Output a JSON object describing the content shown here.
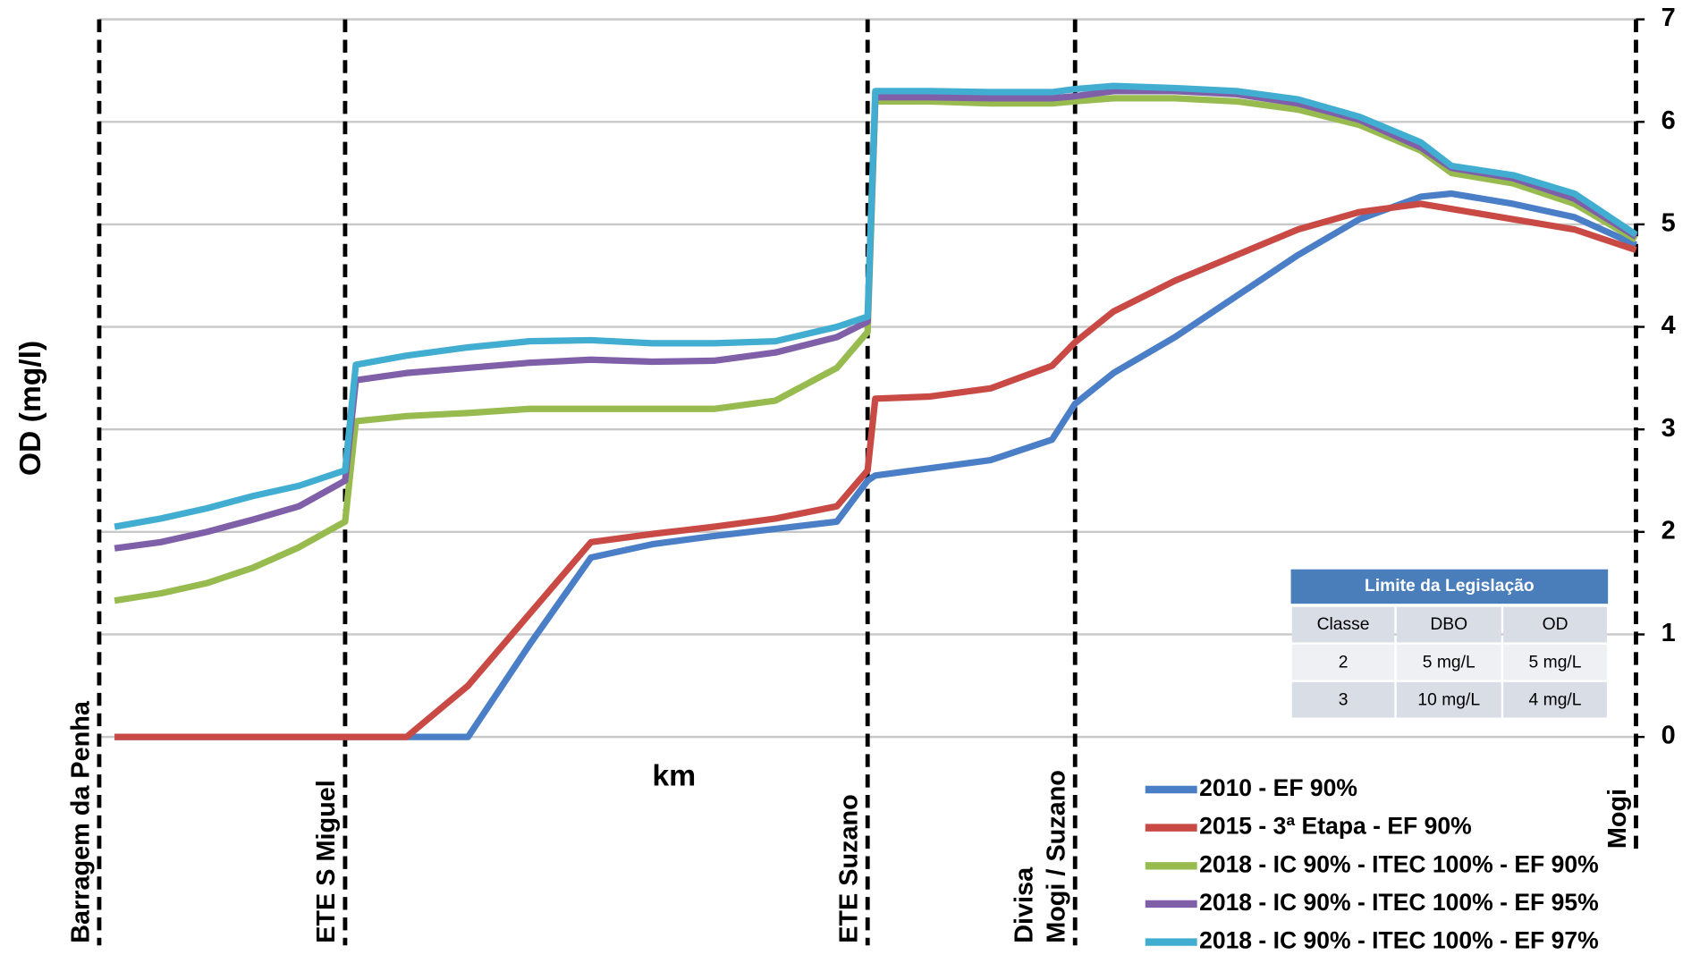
{
  "chart_data": {
    "type": "line",
    "y_label": "OD (mg/l)",
    "x_label": "km",
    "xlim": [
      0,
      100
    ],
    "ylim": [
      0,
      7
    ],
    "yticks": [
      0,
      1,
      2,
      3,
      4,
      5,
      6,
      7
    ],
    "y_axis_side": "right",
    "grid": true,
    "x": [
      1,
      4,
      7,
      10,
      13,
      16,
      16.7,
      20,
      24,
      28,
      32,
      36,
      40,
      44,
      48,
      50,
      50.5,
      54,
      58,
      62,
      63.5,
      66,
      70,
      74,
      78,
      82,
      86,
      88,
      92,
      96,
      100
    ],
    "series": [
      {
        "name": "2010 - EF 90%",
        "color": "#4a7ec6",
        "values": [
          0,
          0,
          0,
          0,
          0,
          0,
          0,
          0,
          0,
          0.9,
          1.75,
          1.88,
          1.96,
          2.03,
          2.1,
          2.5,
          2.55,
          2.62,
          2.7,
          2.9,
          3.25,
          3.55,
          3.9,
          4.3,
          4.7,
          5.05,
          5.27,
          5.3,
          5.2,
          5.07,
          4.8
        ]
      },
      {
        "name": "2015 - 3ª Etapa - EF 90%",
        "color": "#c94a45",
        "values": [
          0,
          0,
          0,
          0,
          0,
          0,
          0,
          0,
          0.5,
          1.2,
          1.9,
          1.98,
          2.05,
          2.13,
          2.25,
          2.6,
          3.3,
          3.32,
          3.4,
          3.62,
          3.85,
          4.15,
          4.45,
          4.7,
          4.95,
          5.12,
          5.2,
          5.15,
          5.05,
          4.95,
          4.75
        ]
      },
      {
        "name": "2018 - IC 90% - ITEC 100% - EF 90%",
        "color": "#97bb4f",
        "values": [
          1.33,
          1.4,
          1.5,
          1.65,
          1.85,
          2.1,
          3.08,
          3.13,
          3.16,
          3.2,
          3.2,
          3.2,
          3.2,
          3.28,
          3.6,
          3.95,
          6.2,
          6.2,
          6.18,
          6.18,
          6.2,
          6.23,
          6.23,
          6.2,
          6.12,
          5.97,
          5.72,
          5.5,
          5.4,
          5.2,
          4.85
        ]
      },
      {
        "name": "2018 - IC 90% - ITEC 100% - EF 95%",
        "color": "#7f5fa8",
        "values": [
          1.84,
          1.9,
          2.0,
          2.12,
          2.25,
          2.5,
          3.48,
          3.55,
          3.6,
          3.65,
          3.68,
          3.66,
          3.67,
          3.75,
          3.9,
          4.05,
          6.24,
          6.24,
          6.23,
          6.23,
          6.25,
          6.3,
          6.3,
          6.27,
          6.18,
          6.02,
          5.75,
          5.55,
          5.45,
          5.25,
          4.88
        ]
      },
      {
        "name": "2018 - IC 90% - ITEC 100% - EF 97%",
        "color": "#41aed1",
        "values": [
          2.05,
          2.13,
          2.23,
          2.35,
          2.45,
          2.6,
          3.63,
          3.72,
          3.8,
          3.86,
          3.87,
          3.84,
          3.84,
          3.86,
          4.0,
          4.1,
          6.3,
          6.3,
          6.29,
          6.29,
          6.32,
          6.35,
          6.33,
          6.3,
          6.22,
          6.05,
          5.8,
          5.57,
          5.48,
          5.3,
          4.9
        ]
      }
    ],
    "annotations": [
      {
        "x": 0,
        "label": [
          "Barragem da Penha"
        ]
      },
      {
        "x": 16,
        "label": [
          "ETE S Miguel"
        ]
      },
      {
        "x": 50,
        "label": [
          "ETE Suzano"
        ]
      },
      {
        "x": 63.5,
        "label": [
          "Divisa",
          "Mogi / Suzano"
        ]
      },
      {
        "x": 100,
        "label": [
          "Mogi"
        ]
      }
    ],
    "inset_table": {
      "title": "Limite da Legislação",
      "header": [
        "Classe",
        "DBO",
        "OD"
      ],
      "rows": [
        [
          "2",
          "5 mg/L",
          "5 mg/L"
        ],
        [
          "3",
          "10 mg/L",
          "4 mg/L"
        ]
      ]
    }
  }
}
